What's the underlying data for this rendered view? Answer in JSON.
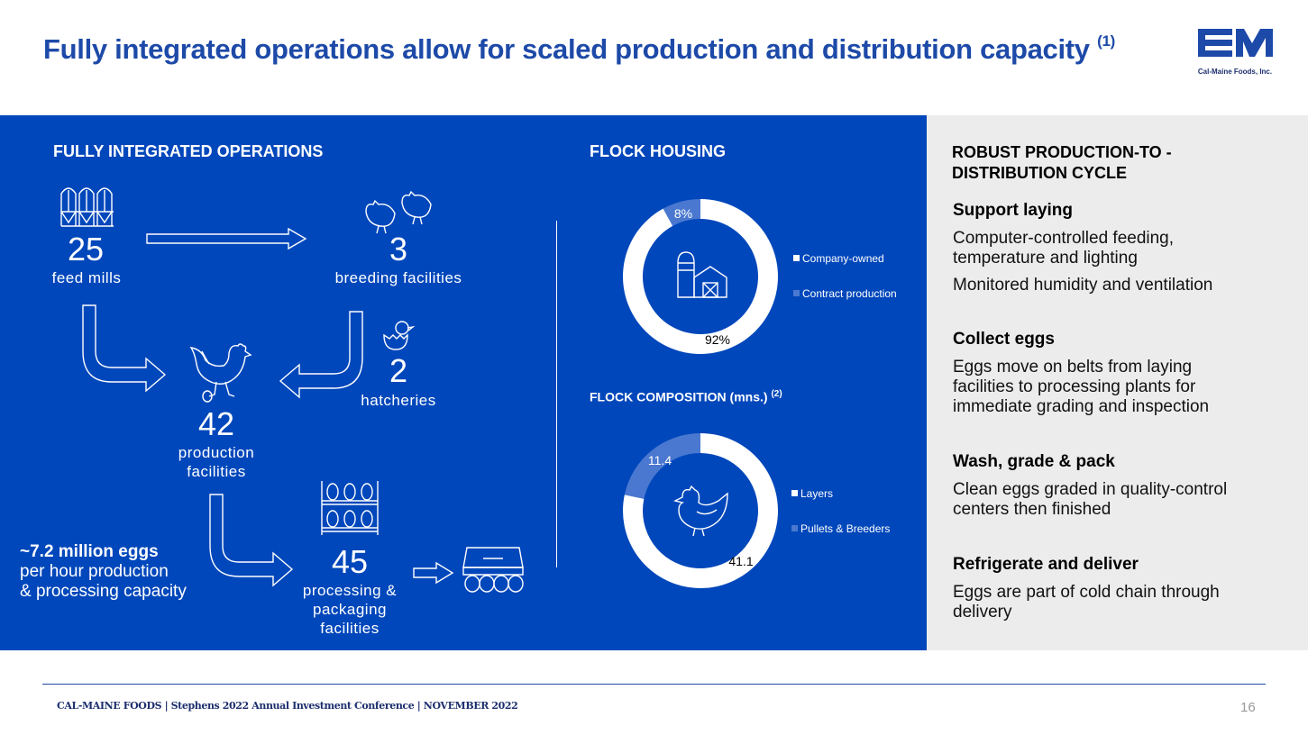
{
  "title": "Fully integrated operations allow for scaled production and distribution capacity",
  "title_footnote": "(1)",
  "logo_text": "Cal-Maine Foods, Inc.",
  "operations": {
    "header": "FULLY INTEGRATED OPERATIONS",
    "feed_mills": {
      "value": "25",
      "label": "feed mills"
    },
    "breeding": {
      "value": "3",
      "label": "breeding facilities"
    },
    "hatcheries": {
      "value": "2",
      "label": "hatcheries"
    },
    "production": {
      "value": "42",
      "label_1": "production",
      "label_2": "facilities"
    },
    "processing": {
      "value": "45",
      "label_1": "processing &",
      "label_2": "packaging",
      "label_3": "facilities"
    },
    "capacity_bold": "~7.2 million eggs",
    "capacity_line2": "per hour production",
    "capacity_line3": "& processing capacity"
  },
  "flock_housing": {
    "header": "FLOCK HOUSING",
    "legend": [
      "Company-owned",
      "Contract production"
    ],
    "label_small": "8%",
    "label_large": "92%"
  },
  "flock_composition": {
    "header": "FLOCK COMPOSITION (mns.)",
    "footnote": "(2)",
    "legend": [
      "Layers",
      "Pullets & Breeders"
    ],
    "label_small": "11.4",
    "label_large": "41.1"
  },
  "chart_data": [
    {
      "type": "pie",
      "title": "FLOCK HOUSING",
      "categories": [
        "Company-owned",
        "Contract production"
      ],
      "values": [
        92,
        8
      ],
      "unit": "%",
      "colors": [
        "#ffffff",
        "#4a78d0"
      ],
      "legend": "right"
    },
    {
      "type": "pie",
      "title": "FLOCK COMPOSITION (mns.)",
      "categories": [
        "Layers",
        "Pullets & Breeders"
      ],
      "values": [
        41.1,
        11.4
      ],
      "colors": [
        "#ffffff",
        "#4a78d0"
      ],
      "legend": "right"
    }
  ],
  "cycle": {
    "header_1": "ROBUST PRODUCTION-TO -",
    "header_2": "DISTRIBUTION CYCLE",
    "steps": [
      {
        "title": "Support laying",
        "lines": [
          "Computer-controlled feeding,",
          "temperature and lighting",
          "Monitored humidity and ventilation"
        ]
      },
      {
        "title": "Collect eggs",
        "lines": [
          "Eggs move on belts from laying",
          "facilities to processing plants for",
          "immediate grading and inspection"
        ]
      },
      {
        "title": "Wash, grade & pack",
        "lines": [
          "Clean eggs graded in quality-control",
          "centers then finished"
        ]
      },
      {
        "title": "Refrigerate and deliver",
        "lines": [
          "Eggs are part of cold chain through",
          "delivery"
        ]
      }
    ]
  },
  "footer": "CAL-MAINE FOODS | Stephens 2022 Annual Investment Conference | NOVEMBER 2022",
  "page_number": "16",
  "colors": {
    "brand_blue": "#0047bb",
    "title_blue": "#1d4aa8",
    "panel_gray": "#ececec",
    "accent_light_blue": "#4a78d0"
  }
}
